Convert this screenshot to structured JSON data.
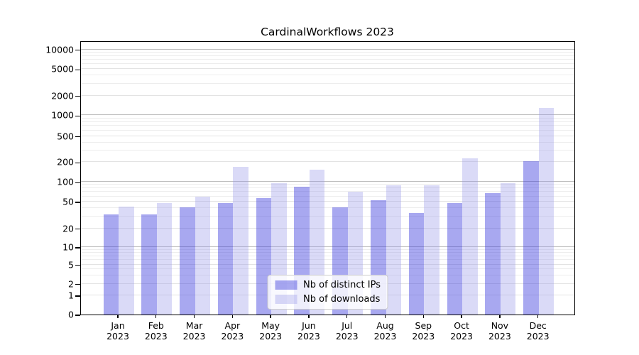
{
  "chart_data": {
    "type": "bar",
    "title": "CardinalWorkflows 2023",
    "categories": [
      "Jan",
      "Feb",
      "Mar",
      "Apr",
      "May",
      "Jun",
      "Jul",
      "Aug",
      "Sep",
      "Oct",
      "Nov",
      "Dec"
    ],
    "category_year": "2023",
    "series": [
      {
        "name": "Nb of distinct IPs",
        "color": "rgba(62,62,221,0.45)",
        "values": [
          32,
          32,
          41,
          47,
          57,
          84,
          41,
          53,
          34,
          48,
          68,
          208
        ]
      },
      {
        "name": "Nb of downloads",
        "color": "rgba(148,148,232,0.35)",
        "values": [
          42,
          48,
          59,
          172,
          95,
          153,
          71,
          89,
          89,
          227,
          95,
          1283
        ]
      }
    ],
    "yscale": "symlog",
    "yticks": [
      0,
      1,
      2,
      5,
      10,
      20,
      50,
      100,
      200,
      500,
      1000,
      2000,
      5000,
      10000
    ],
    "ylim": [
      0,
      12700
    ],
    "xlabel": "",
    "ylabel": "",
    "grid": true,
    "legend_position": "lower center",
    "colors": {
      "bar_distinct_ips_on_white": "#a8a8ef",
      "bar_downloads_on_white": "#d9d9f6",
      "grid_decade": "#bdbdbd",
      "grid_major": "#e3e3e3",
      "grid_minor": "#ededed",
      "axis": "#000000",
      "background": "#ffffff"
    }
  }
}
